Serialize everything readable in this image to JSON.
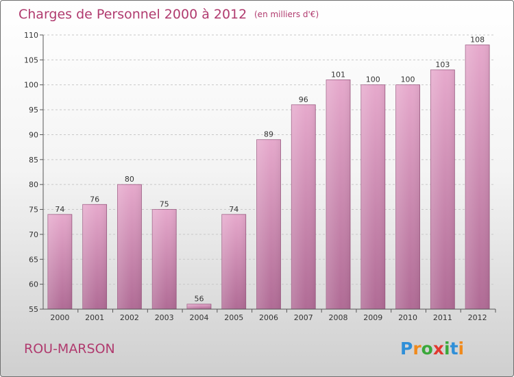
{
  "chart_data": {
    "type": "bar",
    "title": "Charges de Personnel 2000 à 2012",
    "subtitle": "(en milliers d'€)",
    "categories": [
      "2000",
      "2001",
      "2002",
      "2003",
      "2004",
      "2005",
      "2006",
      "2007",
      "2008",
      "2009",
      "2010",
      "2011",
      "2012"
    ],
    "values": [
      74,
      76,
      80,
      75,
      56,
      74,
      89,
      96,
      101,
      100,
      100,
      103,
      108
    ],
    "ylim": [
      55,
      110
    ],
    "yticks": [
      55,
      60,
      65,
      70,
      75,
      80,
      85,
      90,
      95,
      100,
      105,
      110
    ],
    "grid": true,
    "bar_color": "#c77fa8"
  },
  "location": "ROU-MARSON",
  "brand": {
    "letters": [
      "P",
      "r",
      "o",
      "x",
      "i",
      "t",
      "i"
    ],
    "colors": [
      "#2f8fd8",
      "#f08a1c",
      "#3aa83a",
      "#e2382f",
      "#3aa83a",
      "#2f8fd8",
      "#f08a1c"
    ]
  }
}
